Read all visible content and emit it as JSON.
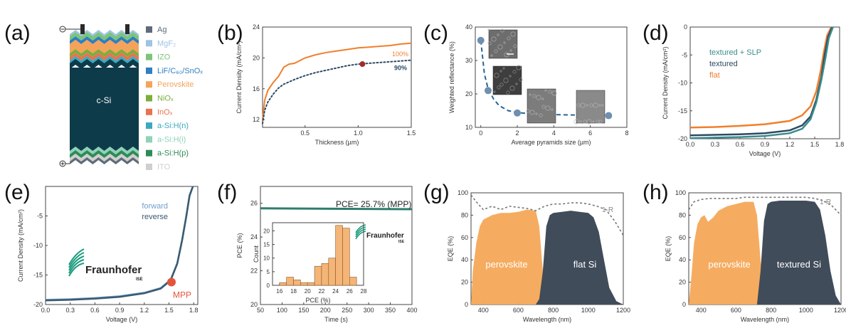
{
  "panels": {
    "a": {
      "letter": "(a)",
      "core_label": "c-Si",
      "legend": [
        {
          "label": "Ag",
          "color": "#5f6b78"
        },
        {
          "label": "MgF₂",
          "color": "#9dc3e6"
        },
        {
          "label": "IZO",
          "color": "#7cc47a"
        },
        {
          "label": "LiF/C₆₀/SnOₓ",
          "color": "#2f7fc1"
        },
        {
          "label": "Perovskite",
          "color": "#f5a35a"
        },
        {
          "label": "NiOₓ",
          "color": "#7cae3d"
        },
        {
          "label": "InOₓ",
          "color": "#e8734f"
        },
        {
          "label": "a-Si:H(n)",
          "color": "#3aa9c0"
        },
        {
          "label": "a-Si:H(i)",
          "color": "#8fd2b8"
        },
        {
          "label": "a-Si:H(p)",
          "color": "#2e8b57"
        },
        {
          "label": "ITO",
          "color": "#cfcfcf"
        }
      ]
    },
    "b": {
      "letter": "(b)"
    },
    "c": {
      "letter": "(c)"
    },
    "d": {
      "letter": "(d)"
    },
    "e": {
      "letter": "(e)",
      "logo_text": "Fraunhofer",
      "logo_sub": "ISE"
    },
    "f": {
      "letter": "(f)",
      "annotation": "PCE= 25.7% (MPP)",
      "logo_text": "Fraunhofer",
      "logo_sub": "ISE"
    },
    "g": {
      "letter": "(g)"
    },
    "h": {
      "letter": "(h)"
    }
  },
  "chart_data": [
    {
      "id": "b",
      "type": "line",
      "xlabel": "Thickness (µm)",
      "ylabel": "Current Density (mA/cm²)",
      "xlim": [
        0.1,
        1.5
      ],
      "ylim": [
        11,
        24
      ],
      "xticks": [
        0.5,
        1.0,
        1.5
      ],
      "xtick_labels": [
        "0.5",
        "1.0",
        "1.5"
      ],
      "yticks": [
        12,
        16,
        20,
        24
      ],
      "ytick_labels": [
        "12",
        "16",
        "20",
        "24"
      ],
      "series": [
        {
          "name": "100%",
          "color": "#f07f2c",
          "style": "solid",
          "x": [
            0.1,
            0.12,
            0.15,
            0.2,
            0.25,
            0.3,
            0.35,
            0.4,
            0.5,
            0.6,
            0.7,
            0.8,
            0.9,
            1.0,
            1.1,
            1.2,
            1.3,
            1.4,
            1.5
          ],
          "y": [
            12.0,
            14.5,
            15.8,
            16.8,
            17.6,
            18.8,
            19.2,
            19.3,
            20.0,
            20.4,
            20.7,
            20.9,
            21.1,
            21.3,
            21.4,
            21.5,
            21.6,
            21.8,
            21.9
          ]
        },
        {
          "name": "90%",
          "color": "#2c4a63",
          "style": "dotted",
          "x": [
            0.1,
            0.12,
            0.15,
            0.2,
            0.25,
            0.3,
            0.4,
            0.5,
            0.6,
            0.7,
            0.8,
            0.9,
            1.0,
            1.1,
            1.2,
            1.3,
            1.4,
            1.5
          ],
          "y": [
            11.5,
            13.2,
            14.3,
            15.3,
            16.1,
            16.6,
            17.2,
            17.7,
            18.1,
            18.4,
            18.7,
            19.0,
            19.2,
            19.3,
            19.4,
            19.5,
            19.6,
            19.7
          ]
        }
      ],
      "marker": {
        "x": 1.04,
        "y": 19.2,
        "color": "#a52a2a"
      }
    },
    {
      "id": "c",
      "type": "scatter",
      "xlabel": "Average pyramids size (µm)",
      "ylabel": "Weighted reflectance (%)",
      "xlim": [
        -0.3,
        8
      ],
      "ylim": [
        10,
        40
      ],
      "xticks": [
        0,
        2,
        4,
        6,
        8
      ],
      "xtick_labels": [
        "0",
        "2",
        "4",
        "6",
        "8"
      ],
      "yticks": [
        10,
        20,
        30,
        40
      ],
      "ytick_labels": [
        "10",
        "20",
        "30",
        "40"
      ],
      "points": {
        "x": [
          0,
          0.4,
          2,
          7
        ],
        "y": [
          36,
          21,
          14.3,
          13.5
        ],
        "color": "#6f8fb0"
      },
      "fit": {
        "x": [
          0,
          0.2,
          0.4,
          0.7,
          1.0,
          1.5,
          2,
          3,
          4,
          5,
          6,
          7
        ],
        "y": [
          36,
          26,
          21.5,
          18.5,
          16.5,
          15.0,
          14.4,
          14.0,
          13.8,
          13.7,
          13.6,
          13.5
        ],
        "color": "#2a6496"
      }
    },
    {
      "id": "d",
      "type": "line",
      "xlabel": "Voltage (V)",
      "ylabel": "Current Density (mA/cm²)",
      "xlim": [
        0,
        1.8
      ],
      "ylim": [
        -20,
        0
      ],
      "xticks": [
        0,
        0.3,
        0.6,
        0.9,
        1.2,
        1.5,
        1.8
      ],
      "xtick_labels": [
        "0.0",
        "0.3",
        "0.6",
        "0.9",
        "1.2",
        "1.5",
        "1.8"
      ],
      "yticks": [
        0,
        -5,
        -10,
        -15,
        -20
      ],
      "ytick_labels": [
        "0",
        "-5",
        "-10",
        "-15",
        "-20"
      ],
      "series": [
        {
          "name": "textured + SLP",
          "color": "#3a8c8c",
          "x": [
            0,
            0.3,
            0.6,
            0.9,
            1.2,
            1.35,
            1.45,
            1.52,
            1.58,
            1.63,
            1.67,
            1.72
          ],
          "y": [
            -19.9,
            -19.8,
            -19.7,
            -19.5,
            -19.0,
            -18.2,
            -16.5,
            -13.5,
            -9.5,
            -5.5,
            -2.0,
            0
          ]
        },
        {
          "name": "textured",
          "color": "#2c4a63",
          "x": [
            0,
            0.3,
            0.6,
            0.9,
            1.2,
            1.35,
            1.45,
            1.52,
            1.58,
            1.62,
            1.66,
            1.71
          ],
          "y": [
            -19.4,
            -19.3,
            -19.2,
            -19.0,
            -18.5,
            -17.6,
            -16.0,
            -13.0,
            -9.0,
            -5.0,
            -1.8,
            0
          ]
        },
        {
          "name": "flat",
          "color": "#f07f2c",
          "x": [
            0,
            0.3,
            0.6,
            0.9,
            1.2,
            1.35,
            1.45,
            1.52,
            1.57,
            1.61,
            1.65,
            1.7
          ],
          "y": [
            -18.0,
            -17.9,
            -17.7,
            -17.4,
            -16.8,
            -15.8,
            -14.2,
            -11.5,
            -8.0,
            -4.5,
            -1.5,
            0
          ]
        }
      ]
    },
    {
      "id": "e",
      "type": "line",
      "xlabel": "Voltage (V)",
      "ylabel": "Current Density (mA/cm²)",
      "xlim": [
        0,
        1.85
      ],
      "ylim": [
        -20,
        0
      ],
      "xticks": [
        0,
        0.3,
        0.6,
        0.9,
        1.2,
        1.5,
        1.8
      ],
      "xtick_labels": [
        "0.0",
        "0.3",
        "0.6",
        "0.9",
        "1.2",
        "1.5",
        "1.8"
      ],
      "yticks": [
        -5,
        -10,
        -15,
        -20
      ],
      "ytick_labels": [
        "-5",
        "-10",
        "-15",
        "-20"
      ],
      "series": [
        {
          "name": "forward",
          "color": "#6f9fcf",
          "x": [
            0,
            0.3,
            0.6,
            0.9,
            1.2,
            1.4,
            1.52,
            1.6,
            1.66,
            1.71,
            1.75,
            1.79
          ],
          "y": [
            -19.2,
            -19.1,
            -18.9,
            -18.6,
            -18.0,
            -17.2,
            -15.8,
            -13.0,
            -9.0,
            -5.0,
            -1.5,
            0
          ]
        },
        {
          "name": "reverse",
          "color": "#3a5a6e",
          "x": [
            0,
            0.3,
            0.6,
            0.9,
            1.2,
            1.4,
            1.52,
            1.6,
            1.66,
            1.71,
            1.75,
            1.79
          ],
          "y": [
            -19.3,
            -19.2,
            -19.0,
            -18.7,
            -18.1,
            -17.3,
            -15.9,
            -13.1,
            -9.1,
            -5.1,
            -1.6,
            0
          ]
        }
      ],
      "mpp": {
        "label": "MPP",
        "x": 1.53,
        "y": -16.2,
        "color": "#e3553a"
      }
    },
    {
      "id": "f",
      "type": "line",
      "xlabel": "Time (s)",
      "ylabel": "PCE (%)",
      "xlim": [
        50,
        400
      ],
      "ylim": [
        20,
        27
      ],
      "xticks": [
        50,
        100,
        150,
        200,
        250,
        300,
        350,
        400
      ],
      "xtick_labels": [
        "50",
        "100",
        "150",
        "200",
        "250",
        "300",
        "350",
        "400"
      ],
      "yticks": [
        20,
        22,
        24,
        26
      ],
      "ytick_labels": [
        "20",
        "22",
        "24",
        "26"
      ],
      "series": [
        {
          "name": "",
          "color": "#2e7d6e",
          "x": [
            50,
            400
          ],
          "y": [
            25.7,
            25.65
          ]
        }
      ],
      "inset": {
        "type": "bar",
        "xlabel": "PCE (%)",
        "ylabel": "Count",
        "xlim": [
          15,
          28
        ],
        "ylim": [
          0,
          23
        ],
        "xticks": [
          16,
          18,
          20,
          22,
          24,
          26,
          28
        ],
        "xtick_labels": [
          "16",
          "18",
          "20",
          "22",
          "24",
          "26",
          "28"
        ],
        "yticks": [
          0,
          5,
          10,
          15,
          20
        ],
        "ytick_labels": [
          "0",
          "5",
          "10",
          "15",
          "20"
        ],
        "bin_edges": [
          16,
          17,
          18,
          19,
          20,
          21,
          22,
          23,
          24,
          25,
          26,
          27
        ],
        "values": [
          1,
          3,
          2,
          1,
          1,
          7,
          8,
          10,
          22,
          21,
          3
        ],
        "color": "#f4b577"
      }
    },
    {
      "id": "g",
      "type": "area",
      "xlabel": "Wavelength (nm)",
      "ylabel": "EQE (%)",
      "xlim": [
        330,
        1200
      ],
      "ylim": [
        0,
        100
      ],
      "xticks": [
        400,
        600,
        800,
        1000,
        1200
      ],
      "xtick_labels": [
        "400",
        "600",
        "800",
        "1000",
        "1200"
      ],
      "yticks": [
        0,
        20,
        40,
        60,
        80,
        100
      ],
      "ytick_labels": [
        "0",
        "20",
        "40",
        "60",
        "80",
        "100"
      ],
      "series": [
        {
          "name": "perovskite",
          "color": "#f4a857",
          "x": [
            330,
            340,
            360,
            380,
            400,
            450,
            500,
            550,
            600,
            650,
            700,
            720,
            740,
            760,
            780,
            800
          ],
          "y": [
            0,
            30,
            55,
            70,
            76,
            80,
            82,
            82,
            83,
            85,
            84,
            70,
            30,
            5,
            1,
            0
          ]
        },
        {
          "name": "flat Si",
          "color": "#404c5a",
          "x": [
            700,
            720,
            740,
            760,
            780,
            800,
            850,
            900,
            950,
            1000,
            1030,
            1060,
            1090,
            1120,
            1160,
            1200
          ],
          "y": [
            0,
            5,
            30,
            70,
            80,
            82,
            83,
            84,
            83,
            82,
            78,
            65,
            40,
            15,
            3,
            0
          ]
        }
      ],
      "reflect": {
        "name": "1-R",
        "x": [
          330,
          360,
          400,
          450,
          500,
          550,
          600,
          650,
          700,
          750,
          800,
          850,
          900,
          950,
          1000,
          1050,
          1100,
          1150,
          1200
        ],
        "y": [
          98,
          92,
          85,
          88,
          85,
          88,
          87,
          86,
          84,
          88,
          90,
          90,
          91,
          91,
          90,
          88,
          85,
          75,
          62
        ]
      }
    },
    {
      "id": "h",
      "type": "area",
      "xlabel": "Wavelength (nm)",
      "ylabel": "EQE (%)",
      "xlim": [
        330,
        1200
      ],
      "ylim": [
        0,
        100
      ],
      "xticks": [
        400,
        600,
        800,
        1000,
        1200
      ],
      "xtick_labels": [
        "400",
        "600",
        "800",
        "1000",
        "1200"
      ],
      "yticks": [
        0,
        20,
        40,
        60,
        80,
        100
      ],
      "ytick_labels": [
        "0",
        "20",
        "40",
        "60",
        "80",
        "100"
      ],
      "series": [
        {
          "name": "perovskite",
          "color": "#f4a857",
          "x": [
            330,
            345,
            360,
            380,
            400,
            420,
            440,
            470,
            500,
            550,
            600,
            650,
            700,
            720,
            740,
            760,
            780,
            800
          ],
          "y": [
            0,
            25,
            55,
            72,
            78,
            80,
            74,
            78,
            84,
            88,
            90,
            92,
            92,
            80,
            40,
            8,
            1,
            0
          ]
        },
        {
          "name": "textured Si",
          "color": "#404c5a",
          "x": [
            720,
            740,
            760,
            780,
            800,
            850,
            900,
            950,
            1000,
            1050,
            1080,
            1110,
            1140,
            1170,
            1200
          ],
          "y": [
            0,
            30,
            75,
            90,
            92,
            93,
            93,
            93,
            93,
            92,
            85,
            62,
            30,
            8,
            0
          ]
        }
      ],
      "reflect": {
        "name": "1-R",
        "x": [
          330,
          360,
          400,
          450,
          500,
          550,
          600,
          650,
          700,
          750,
          800,
          850,
          900,
          950,
          1000,
          1050,
          1100,
          1150,
          1200
        ],
        "y": [
          85,
          92,
          94,
          95,
          95,
          95,
          95,
          96,
          96,
          96,
          96,
          96,
          96,
          96,
          96,
          95,
          93,
          88,
          80
        ]
      }
    }
  ]
}
